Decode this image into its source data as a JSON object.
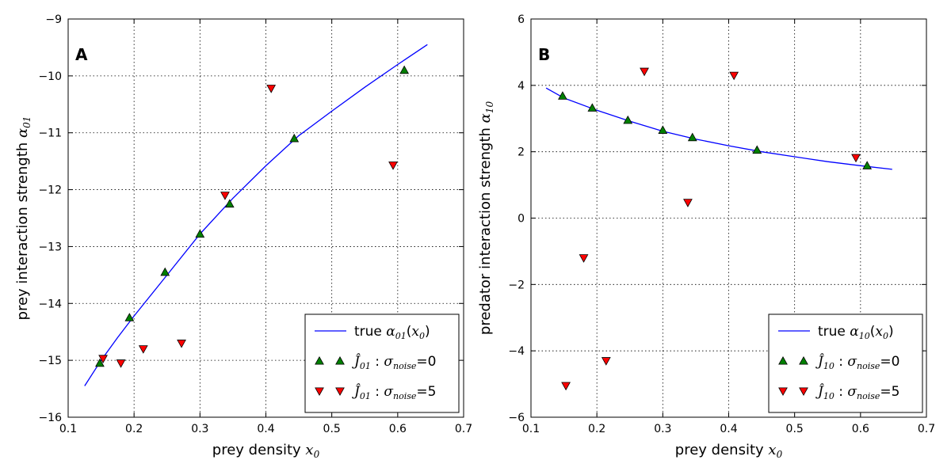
{
  "chart_data": [
    {
      "type": "scatter",
      "panel_label": "A",
      "xlabel": "prey density x0",
      "ylabel": "prey interaction strength α01",
      "xlim": [
        0.1,
        0.7
      ],
      "ylim": [
        -16,
        -9
      ],
      "xticks": [
        "0.1",
        "0.2",
        "0.3",
        "0.4",
        "0.5",
        "0.6",
        "0.7"
      ],
      "yticks": [
        "−16",
        "−15",
        "−14",
        "−13",
        "−12",
        "−11",
        "−10",
        "−9"
      ],
      "grid": true,
      "legend_position": "lower-right",
      "series": [
        {
          "name": "true α01(x0)",
          "kind": "line",
          "color": "#0000ff",
          "x": [
            0.125,
            0.15,
            0.175,
            0.2,
            0.25,
            0.3,
            0.35,
            0.4,
            0.45,
            0.5,
            0.55,
            0.6,
            0.645
          ],
          "y": [
            -15.45,
            -15.0,
            -14.6,
            -14.22,
            -13.5,
            -12.78,
            -12.15,
            -11.58,
            -11.05,
            -10.62,
            -10.2,
            -9.8,
            -9.45
          ]
        },
        {
          "name": "Ĵ 01 : σnoise = 0",
          "kind": "marker",
          "marker": "triangle-up",
          "color": "#008000",
          "x": [
            0.148,
            0.193,
            0.247,
            0.3,
            0.345,
            0.443,
            0.61
          ],
          "y": [
            -15.05,
            -14.25,
            -13.45,
            -12.78,
            -12.25,
            -11.1,
            -9.9
          ]
        },
        {
          "name": "Ĵ 01 : σnoise = 5",
          "kind": "marker",
          "marker": "triangle-down",
          "color": "#ff0000",
          "x": [
            0.153,
            0.18,
            0.214,
            0.272,
            0.338,
            0.408,
            0.593
          ],
          "y": [
            -14.97,
            -15.05,
            -14.8,
            -14.7,
            -12.1,
            -10.22,
            -11.57
          ]
        }
      ]
    },
    {
      "type": "scatter",
      "panel_label": "B",
      "xlabel": "prey density x0",
      "ylabel": "predator interaction strength α10",
      "xlim": [
        0.1,
        0.7
      ],
      "ylim": [
        -6,
        6
      ],
      "xticks": [
        "0.1",
        "0.2",
        "0.3",
        "0.4",
        "0.5",
        "0.6",
        "0.7"
      ],
      "yticks": [
        "−6",
        "−4",
        "−2",
        "0",
        "2",
        "4",
        "6"
      ],
      "grid": true,
      "legend_position": "lower-right",
      "series": [
        {
          "name": "true α10(x0)",
          "kind": "line",
          "color": "#0000ff",
          "x": [
            0.123,
            0.15,
            0.2,
            0.25,
            0.3,
            0.35,
            0.4,
            0.45,
            0.5,
            0.55,
            0.6,
            0.648
          ],
          "y": [
            3.92,
            3.62,
            3.25,
            2.92,
            2.62,
            2.38,
            2.18,
            2.0,
            1.85,
            1.7,
            1.58,
            1.47
          ]
        },
        {
          "name": "Ĵ 10 : σnoise = 0",
          "kind": "marker",
          "marker": "triangle-up",
          "color": "#008000",
          "x": [
            0.148,
            0.193,
            0.247,
            0.3,
            0.345,
            0.443,
            0.61
          ],
          "y": [
            3.68,
            3.32,
            2.95,
            2.65,
            2.43,
            2.05,
            1.58
          ]
        },
        {
          "name": "Ĵ 10 : σnoise = 5",
          "kind": "marker",
          "marker": "triangle-down",
          "color": "#ff0000",
          "x": [
            0.153,
            0.18,
            0.214,
            0.272,
            0.338,
            0.408,
            0.593
          ],
          "y": [
            -5.05,
            -1.2,
            -4.3,
            4.42,
            0.47,
            4.3,
            1.82
          ]
        }
      ]
    }
  ]
}
